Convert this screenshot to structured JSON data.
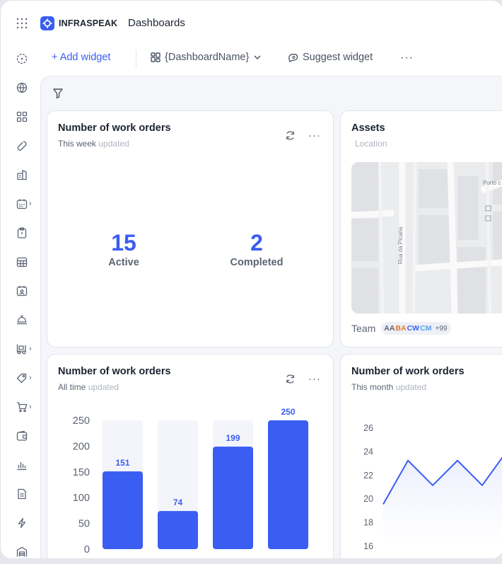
{
  "topbar": {
    "logo_text": "INFRASPEAK",
    "app_title": "Dashboards"
  },
  "sidebar": {
    "items": [
      {
        "icon": "compass-icon",
        "chevron": false
      },
      {
        "icon": "globe-icon",
        "chevron": false
      },
      {
        "icon": "layout-grid-icon",
        "chevron": false
      },
      {
        "icon": "wrench-icon",
        "chevron": false
      },
      {
        "icon": "building-icon",
        "chevron": false
      },
      {
        "icon": "calendar-icon",
        "chevron": true
      },
      {
        "icon": "clipboard-icon",
        "chevron": false
      },
      {
        "icon": "calendar-grid-icon",
        "chevron": false
      },
      {
        "icon": "calendar-user-icon",
        "chevron": false
      },
      {
        "icon": "service-bell-icon",
        "chevron": false
      },
      {
        "icon": "forklift-icon",
        "chevron": true
      },
      {
        "icon": "tag-icon",
        "chevron": true
      },
      {
        "icon": "cart-icon",
        "chevron": true
      },
      {
        "icon": "wallet-icon",
        "chevron": false
      },
      {
        "icon": "bar-chart-icon",
        "chevron": false
      },
      {
        "icon": "document-icon",
        "chevron": false
      },
      {
        "icon": "bolt-icon",
        "chevron": false
      },
      {
        "icon": "warehouse-icon",
        "chevron": false
      }
    ]
  },
  "toolbar": {
    "add_widget": "+ Add widget",
    "dashboard_name": "{DashboardName}",
    "suggest_widget": "Suggest widget",
    "more": "···"
  },
  "cards": {
    "work_orders_week": {
      "title": "Number of work orders",
      "period": "This week",
      "updated": "updated",
      "active_value": "15",
      "active_label": "Active",
      "completed_value": "2",
      "completed_label": "Completed"
    },
    "assets": {
      "title": "Assets",
      "subtitle": "Location",
      "street_label": "Rua da Picaria",
      "place_label": "Porto c",
      "team_label": "Team",
      "avatars": [
        {
          "initials": "AA",
          "color": "#5b6473"
        },
        {
          "initials": "BA",
          "color": "#e07a2e"
        },
        {
          "initials": "CW",
          "color": "#3a5ef2"
        },
        {
          "initials": "CM",
          "color": "#5aa0f0"
        }
      ],
      "more_count": "+99"
    },
    "work_orders_all": {
      "title": "Number of work orders",
      "period": "All time",
      "updated": "updated"
    },
    "work_orders_month": {
      "title": "Number of work orders",
      "period": "This month",
      "updated": "updated"
    }
  },
  "colors": {
    "accent": "#3a5ef2",
    "bar_track": "#f4f5fa",
    "area_fill": "#e8ecfd"
  },
  "chart_data": [
    {
      "type": "bar",
      "categories": [
        "",
        "",
        "",
        ""
      ],
      "values": [
        151,
        74,
        199,
        250
      ],
      "ylim": [
        0,
        250
      ],
      "yticks": [
        0,
        50,
        100,
        150,
        200,
        250
      ],
      "grid": false,
      "data_labels": true
    },
    {
      "type": "area",
      "values": [
        19.5,
        23.2,
        21.1,
        23.2,
        21.1,
        24.0
      ],
      "ylim": [
        16,
        26
      ],
      "yticks": [
        16,
        18,
        20,
        22,
        24,
        26
      ],
      "grid": false
    }
  ]
}
